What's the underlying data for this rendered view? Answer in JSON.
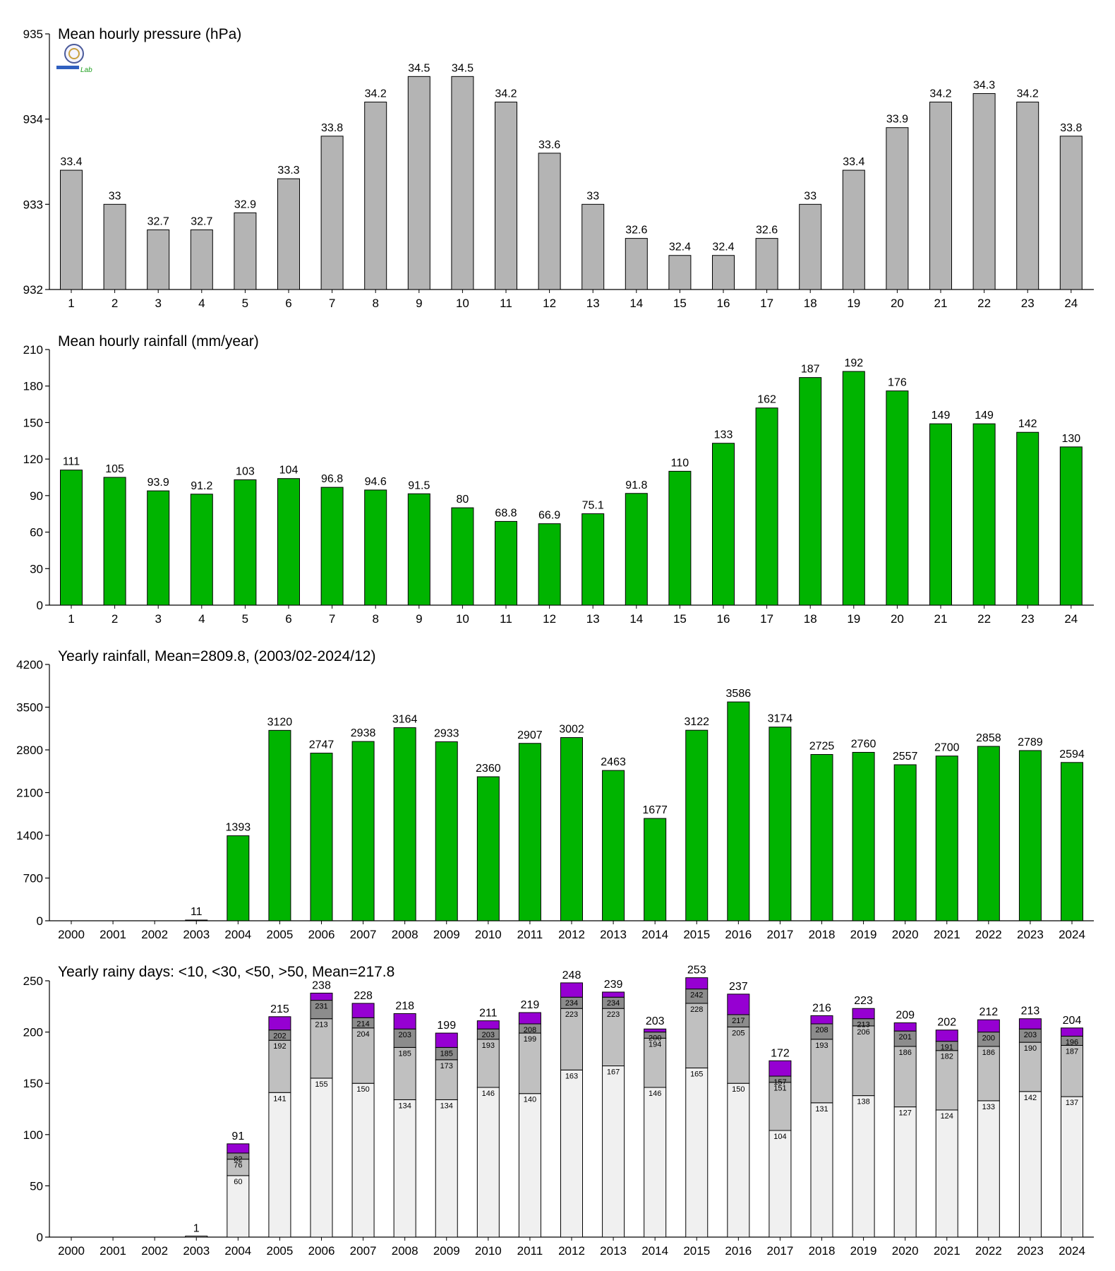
{
  "chart_data": [
    {
      "type": "bar",
      "title": "Mean hourly pressure (hPa)",
      "categories": [
        "1",
        "2",
        "3",
        "4",
        "5",
        "6",
        "7",
        "8",
        "9",
        "10",
        "11",
        "12",
        "13",
        "14",
        "15",
        "16",
        "17",
        "18",
        "19",
        "20",
        "21",
        "22",
        "23",
        "24"
      ],
      "values": [
        933.4,
        933.0,
        932.7,
        932.7,
        932.9,
        933.3,
        933.8,
        934.2,
        934.5,
        934.5,
        934.2,
        933.6,
        933.0,
        932.6,
        932.4,
        932.4,
        932.6,
        933.0,
        933.4,
        933.9,
        934.2,
        934.3,
        934.2,
        933.8
      ],
      "value_labels": [
        "33.4",
        "33",
        "32.7",
        "32.7",
        "32.9",
        "33.3",
        "33.8",
        "34.2",
        "34.5",
        "34.5",
        "34.2",
        "33.6",
        "33",
        "32.6",
        "32.4",
        "32.4",
        "32.6",
        "33",
        "33.4",
        "33.9",
        "34.2",
        "34.3",
        "34.2",
        "33.8"
      ],
      "ylim": [
        932,
        935
      ],
      "yticks": [
        932,
        933,
        934,
        935
      ],
      "color": "#b4b4b4"
    },
    {
      "type": "bar",
      "title": "Mean hourly rainfall (mm/year)",
      "categories": [
        "1",
        "2",
        "3",
        "4",
        "5",
        "6",
        "7",
        "8",
        "9",
        "10",
        "11",
        "12",
        "13",
        "14",
        "15",
        "16",
        "17",
        "18",
        "19",
        "20",
        "21",
        "22",
        "23",
        "24"
      ],
      "values": [
        111,
        105,
        93.9,
        91.2,
        103,
        104,
        96.8,
        94.6,
        91.5,
        80,
        68.8,
        66.9,
        75.1,
        91.8,
        110,
        133,
        162,
        187,
        192,
        176,
        149,
        149,
        142,
        130
      ],
      "value_labels": [
        "111",
        "105",
        "93.9",
        "91.2",
        "103",
        "104",
        "96.8",
        "94.6",
        "91.5",
        "80",
        "68.8",
        "66.9",
        "75.1",
        "91.8",
        "110",
        "133",
        "162",
        "187",
        "192",
        "176",
        "149",
        "149",
        "142",
        "130"
      ],
      "ylim": [
        0,
        210
      ],
      "yticks": [
        0,
        30,
        60,
        90,
        120,
        150,
        180,
        210
      ],
      "color": "#00b400"
    },
    {
      "type": "bar",
      "title": "Yearly rainfall, Mean=2809.8, (2003/02-2024/12)",
      "categories": [
        "2000",
        "2001",
        "2002",
        "2003",
        "2004",
        "2005",
        "2006",
        "2007",
        "2008",
        "2009",
        "2010",
        "2011",
        "2012",
        "2013",
        "2014",
        "2015",
        "2016",
        "2017",
        "2018",
        "2019",
        "2020",
        "2021",
        "2022",
        "2023",
        "2024"
      ],
      "values": [
        null,
        null,
        null,
        11,
        1393,
        3120,
        2747,
        2938,
        3164,
        2933,
        2360,
        2907,
        3002,
        2463,
        1677,
        3122,
        3586,
        3174,
        2725,
        2760,
        2557,
        2700,
        2858,
        2789,
        2594
      ],
      "value_labels": [
        "",
        "",
        "",
        "11",
        "1393",
        "3120",
        "2747",
        "2938",
        "3164",
        "2933",
        "2360",
        "2907",
        "3002",
        "2463",
        "1677",
        "3122",
        "3586",
        "3174",
        "2725",
        "2760",
        "2557",
        "2700",
        "2858",
        "2789",
        "2594"
      ],
      "ylim": [
        0,
        4200
      ],
      "yticks": [
        0,
        700,
        1400,
        2100,
        2800,
        3500,
        4200
      ],
      "color": "#00b400"
    },
    {
      "type": "bar",
      "stacked": true,
      "title": "Yearly rainy days: <10, <30, <50, >50, Mean=217.8",
      "categories": [
        "2000",
        "2001",
        "2002",
        "2003",
        "2004",
        "2005",
        "2006",
        "2007",
        "2008",
        "2009",
        "2010",
        "2011",
        "2012",
        "2013",
        "2014",
        "2015",
        "2016",
        "2017",
        "2018",
        "2019",
        "2020",
        "2021",
        "2022",
        "2023",
        "2024"
      ],
      "cumulative": [
        null,
        null,
        null,
        [
          1,
          1,
          1,
          1
        ],
        [
          60,
          76,
          82,
          91
        ],
        [
          141,
          192,
          202,
          215
        ],
        [
          155,
          213,
          231,
          238
        ],
        [
          150,
          204,
          214,
          228
        ],
        [
          134,
          185,
          203,
          218
        ],
        [
          134,
          173,
          185,
          199
        ],
        [
          146,
          193,
          203,
          211
        ],
        [
          140,
          199,
          208,
          219
        ],
        [
          163,
          223,
          234,
          248
        ],
        [
          167,
          223,
          234,
          239
        ],
        [
          146,
          194,
          200,
          203
        ],
        [
          165,
          228,
          242,
          253
        ],
        [
          150,
          205,
          217,
          237
        ],
        [
          104,
          151,
          157,
          172
        ],
        [
          131,
          193,
          208,
          216
        ],
        [
          138,
          206,
          213,
          223
        ],
        [
          127,
          186,
          201,
          209
        ],
        [
          124,
          182,
          191,
          202
        ],
        [
          133,
          186,
          200,
          212
        ],
        [
          142,
          190,
          203,
          213
        ],
        [
          137,
          187,
          196,
          204
        ]
      ],
      "totals": [
        "",
        "",
        "",
        "1",
        "91",
        "215",
        "238",
        "228",
        "218",
        "199",
        "211",
        "219",
        "248",
        "239",
        "203",
        "253",
        "237",
        "172",
        "216",
        "223",
        "209",
        "202",
        "212",
        "213",
        "204"
      ],
      "ylim": [
        0,
        250
      ],
      "yticks": [
        0,
        50,
        100,
        150,
        200,
        250
      ],
      "colors": [
        "#f0f0f0",
        "#c0c0c0",
        "#8c8c8c",
        "#9600d2"
      ]
    }
  ],
  "logo": {
    "text": "Lab"
  }
}
